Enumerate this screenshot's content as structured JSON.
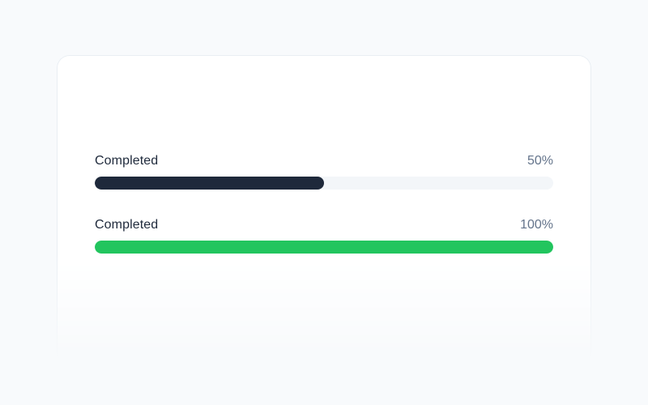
{
  "progress_bars": [
    {
      "label": "Completed",
      "value": "50%",
      "percent": 50,
      "fill_color": "#1e293b"
    },
    {
      "label": "Completed",
      "value": "100%",
      "percent": 100,
      "fill_color": "#22c55e"
    }
  ],
  "colors": {
    "page_background": "#f8fafc",
    "card_background": "#ffffff",
    "card_border": "#e9eef3",
    "track": "#f3f6f9",
    "label_text": "#1e293b",
    "value_text": "#64748b"
  }
}
